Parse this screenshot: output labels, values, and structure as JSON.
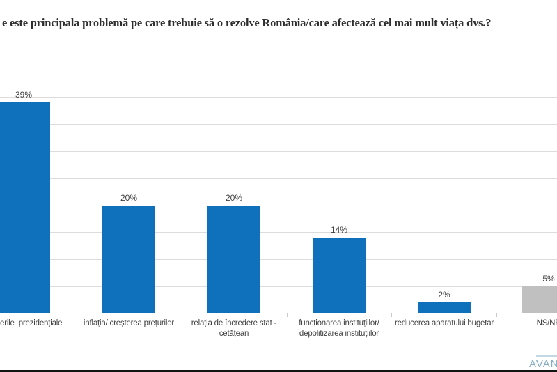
{
  "chart_data": {
    "type": "bar",
    "title": "e este principala problemă pe care trebuie să o rezolve România/care afectează cel mai mult viața dvs.?",
    "categories": [
      "erile  prezidențiale",
      "inflația/ creșterea prețurilor",
      "relația de încredere stat -\ncetățean",
      "funcționarea instituțiilor/\ndepolitizarea instituțiilor",
      "reducerea aparatului bugetar",
      "NS/NR"
    ],
    "values": [
      39,
      20,
      20,
      14,
      2,
      5
    ],
    "value_labels": [
      "39%",
      "20%",
      "20%",
      "14%",
      "2%",
      "5%"
    ],
    "bar_colors": [
      "#0F70BC",
      "#0F70BC",
      "#0F70BC",
      "#0F70BC",
      "#0F70BC",
      "#C0C0C0"
    ],
    "xlabel": "",
    "ylabel": "",
    "ylim": [
      0,
      45
    ],
    "grid": true,
    "grid_step_percent": 5,
    "legend": "none"
  },
  "logo": {
    "text": "AVAN",
    "color": "#85AEC4"
  },
  "colors": {
    "accent_blue": "#0F70BC",
    "neutral_gray_bar": "#C0C0C0",
    "gridline": "#DCDCDC",
    "axis": "#C9C9C9",
    "text": "#3F3F3F",
    "title_text": "#2E2E2E"
  }
}
